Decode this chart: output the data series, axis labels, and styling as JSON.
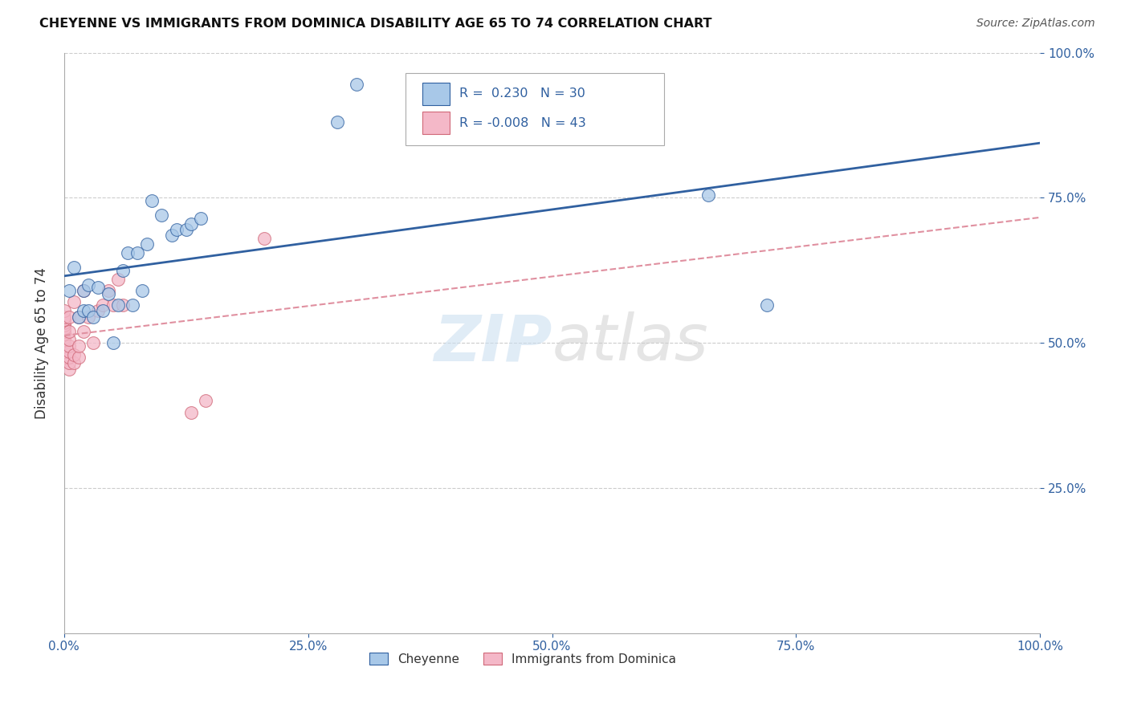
{
  "title": "CHEYENNE VS IMMIGRANTS FROM DOMINICA DISABILITY AGE 65 TO 74 CORRELATION CHART",
  "source": "Source: ZipAtlas.com",
  "ylabel": "Disability Age 65 to 74",
  "r_cheyenne": 0.23,
  "n_cheyenne": 30,
  "r_dominica": -0.008,
  "n_dominica": 43,
  "cheyenne_color": "#a8c8e8",
  "dominica_color": "#f4b8c8",
  "cheyenne_line_color": "#3060a0",
  "dominica_line_color": "#d06878",
  "dominica_line_dash_color": "#e090a0",
  "watermark": "ZIPatlas",
  "cheyenne_x": [
    0.005,
    0.01,
    0.015,
    0.02,
    0.02,
    0.025,
    0.025,
    0.03,
    0.035,
    0.04,
    0.045,
    0.05,
    0.055,
    0.06,
    0.065,
    0.07,
    0.075,
    0.08,
    0.085,
    0.09,
    0.1,
    0.11,
    0.115,
    0.125,
    0.13,
    0.14,
    0.28,
    0.3,
    0.66,
    0.72
  ],
  "cheyenne_y": [
    0.59,
    0.63,
    0.545,
    0.59,
    0.555,
    0.555,
    0.6,
    0.545,
    0.595,
    0.555,
    0.585,
    0.5,
    0.565,
    0.625,
    0.655,
    0.565,
    0.655,
    0.59,
    0.67,
    0.745,
    0.72,
    0.685,
    0.695,
    0.695,
    0.705,
    0.715,
    0.88,
    0.945,
    0.755,
    0.565
  ],
  "dominica_x": [
    0.0,
    0.0,
    0.0,
    0.0,
    0.0,
    0.0,
    0.0,
    0.0,
    0.0,
    0.0,
    0.0,
    0.0,
    0.0,
    0.0,
    0.0,
    0.0,
    0.005,
    0.005,
    0.005,
    0.005,
    0.005,
    0.005,
    0.005,
    0.005,
    0.01,
    0.01,
    0.01,
    0.015,
    0.015,
    0.015,
    0.02,
    0.02,
    0.025,
    0.03,
    0.035,
    0.04,
    0.045,
    0.05,
    0.055,
    0.06,
    0.13,
    0.145,
    0.205
  ],
  "dominica_y": [
    0.47,
    0.475,
    0.485,
    0.49,
    0.495,
    0.5,
    0.505,
    0.51,
    0.515,
    0.52,
    0.525,
    0.53,
    0.535,
    0.54,
    0.545,
    0.555,
    0.455,
    0.465,
    0.475,
    0.485,
    0.495,
    0.505,
    0.52,
    0.545,
    0.465,
    0.48,
    0.57,
    0.475,
    0.495,
    0.545,
    0.52,
    0.59,
    0.545,
    0.5,
    0.555,
    0.565,
    0.59,
    0.565,
    0.61,
    0.565,
    0.38,
    0.4,
    0.68
  ],
  "xmin": 0.0,
  "xmax": 1.0,
  "ymin": 0.0,
  "ymax": 1.0,
  "xtick_labels": [
    "0.0%",
    "25.0%",
    "50.0%",
    "75.0%",
    "100.0%"
  ],
  "ytick_labels": [
    "25.0%",
    "50.0%",
    "75.0%",
    "100.0%"
  ],
  "ytick_vals": [
    0.25,
    0.5,
    0.75,
    1.0
  ],
  "xtick_vals": [
    0.0,
    0.25,
    0.5,
    0.75,
    1.0
  ],
  "background_color": "#ffffff",
  "grid_color": "#cccccc"
}
